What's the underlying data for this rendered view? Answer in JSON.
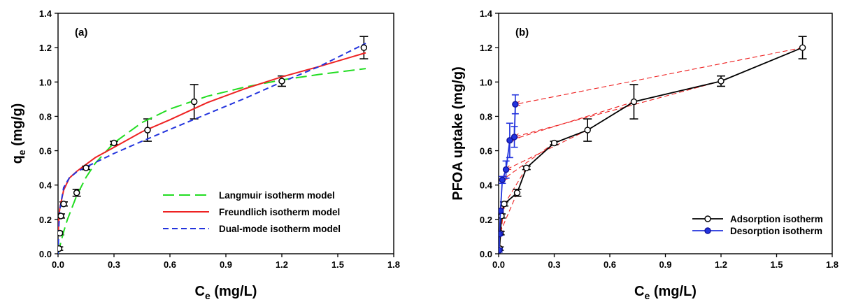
{
  "chart_data": [
    {
      "type": "scatter",
      "panel_label": "(a)",
      "xlabel": {
        "main": "C",
        "sub": "e",
        "unit": " (mg/L)"
      },
      "ylabel": {
        "main": "q",
        "sub": "e",
        "unit": " (mg/g)"
      },
      "xlim": [
        0,
        1.8
      ],
      "ylim": [
        0,
        1.4
      ],
      "xticks": [
        "0.0",
        "0.3",
        "0.6",
        "0.9",
        "1.2",
        "1.5",
        "1.8"
      ],
      "yticks": [
        "0.0",
        "0.2",
        "0.4",
        "0.6",
        "0.8",
        "1.0",
        "1.2",
        "1.4"
      ],
      "legend_position": "bottom-right",
      "points": {
        "x": [
          0.005,
          0.01,
          0.015,
          0.03,
          0.1,
          0.15,
          0.3,
          0.48,
          0.73,
          1.2,
          1.64
        ],
        "y": [
          0.03,
          0.12,
          0.22,
          0.29,
          0.355,
          0.5,
          0.645,
          0.72,
          0.885,
          1.005,
          1.2
        ],
        "err": [
          0.01,
          0.01,
          0.012,
          0.012,
          0.02,
          0.01,
          0.01,
          0.065,
          0.1,
          0.03,
          0.065
        ]
      },
      "series": [
        {
          "name": "Langmuir isotherm model",
          "color": "#22dd22",
          "dash": "long-dash",
          "x": [
            0,
            0.01,
            0.03,
            0.05,
            0.1,
            0.15,
            0.2,
            0.3,
            0.45,
            0.6,
            0.8,
            1.0,
            1.2,
            1.4,
            1.65
          ],
          "y": [
            0,
            0.046,
            0.128,
            0.198,
            0.339,
            0.445,
            0.527,
            0.646,
            0.764,
            0.843,
            0.917,
            0.97,
            1.012,
            1.044,
            1.078
          ]
        },
        {
          "name": "Freundlich isotherm model",
          "color": "#ee2222",
          "dash": "solid",
          "x": [
            0.001,
            0.005,
            0.01,
            0.03,
            0.06,
            0.1,
            0.15,
            0.2,
            0.3,
            0.45,
            0.6,
            0.8,
            1.0,
            1.2,
            1.4,
            1.65
          ],
          "y": [
            0.12,
            0.22,
            0.27,
            0.37,
            0.44,
            0.48,
            0.52,
            0.56,
            0.62,
            0.71,
            0.78,
            0.88,
            0.96,
            1.03,
            1.09,
            1.17
          ]
        },
        {
          "name": "Dual-mode isotherm model",
          "color": "#2233dd",
          "dash": "short-dash",
          "x": [
            0,
            0.005,
            0.01,
            0.03,
            0.06,
            0.1,
            0.15,
            0.2,
            0.3,
            0.45,
            0.6,
            0.8,
            1.0,
            1.2,
            1.4,
            1.65
          ],
          "y": [
            0,
            0.174,
            0.26,
            0.385,
            0.441,
            0.476,
            0.506,
            0.531,
            0.584,
            0.655,
            0.724,
            0.814,
            0.904,
            1.0,
            1.09,
            1.225
          ]
        }
      ]
    },
    {
      "type": "line",
      "panel_label": "(b)",
      "xlabel": {
        "main": "C",
        "sub": "e",
        "unit": " (mg/L)"
      },
      "ylabel": {
        "main": "PFOA uptake (mg/g)",
        "sub": "",
        "unit": ""
      },
      "xlim": [
        0,
        1.8
      ],
      "ylim": [
        0,
        1.4
      ],
      "xticks": [
        "0.0",
        "0.3",
        "0.6",
        "0.9",
        "1.2",
        "1.5",
        "1.8"
      ],
      "yticks": [
        "0.0",
        "0.2",
        "0.4",
        "0.6",
        "0.8",
        "1.0",
        "1.2",
        "1.4"
      ],
      "legend_position": "bottom-right",
      "series": [
        {
          "name": "Adsorption isotherm",
          "color": "#000000",
          "marker": "open-circle",
          "x": [
            0.005,
            0.01,
            0.015,
            0.03,
            0.1,
            0.15,
            0.3,
            0.48,
            0.73,
            1.2,
            1.64
          ],
          "y": [
            0.03,
            0.12,
            0.22,
            0.29,
            0.355,
            0.5,
            0.645,
            0.72,
            0.885,
            1.005,
            1.2
          ],
          "err": [
            0.01,
            0.01,
            0.012,
            0.012,
            0.02,
            0.01,
            0.01,
            0.065,
            0.1,
            0.03,
            0.065
          ]
        },
        {
          "name": "Desorption isotherm",
          "color": "#2233dd",
          "marker": "filled-circle",
          "x": [
            0.003,
            0.005,
            0.01,
            0.02,
            0.04,
            0.06,
            0.085,
            0.09
          ],
          "y": [
            0.02,
            0.115,
            0.25,
            0.43,
            0.49,
            0.66,
            0.68,
            0.87
          ],
          "err": [
            0.01,
            0.01,
            0.01,
            0.02,
            0.05,
            0.1,
            0.06,
            0.055
          ]
        }
      ],
      "arrows": {
        "color": "#ee2222",
        "segments": [
          {
            "from": [
              1.64,
              1.2
            ],
            "to": [
              0.09,
              0.87
            ]
          },
          {
            "from": [
              1.2,
              1.005
            ],
            "to": [
              0.085,
              0.68
            ]
          },
          {
            "from": [
              0.73,
              0.885
            ],
            "to": [
              0.06,
              0.66
            ]
          },
          {
            "from": [
              0.48,
              0.72
            ],
            "to": [
              0.04,
              0.49
            ]
          },
          {
            "from": [
              0.3,
              0.645
            ],
            "to": [
              0.02,
              0.43
            ]
          },
          {
            "from": [
              0.15,
              0.5
            ],
            "to": [
              0.01,
              0.25
            ]
          },
          {
            "from": [
              0.1,
              0.355
            ],
            "to": [
              0.005,
              0.115
            ]
          },
          {
            "from": [
              0.03,
              0.29
            ],
            "to": [
              0.003,
              0.02
            ]
          }
        ]
      }
    }
  ]
}
